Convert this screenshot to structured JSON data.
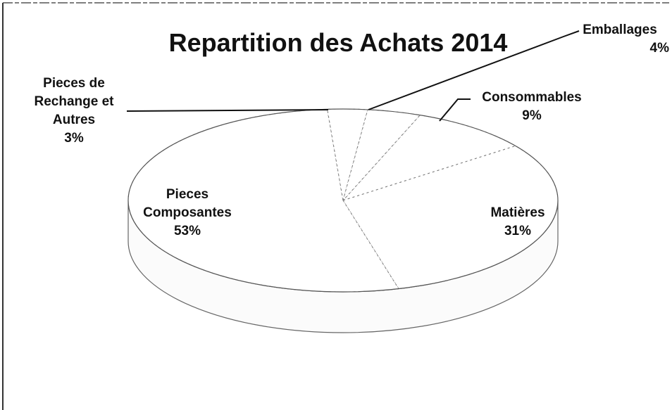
{
  "chart_data": {
    "type": "pie",
    "title": "Repartition des Achats 2014",
    "categories": [
      "Consommables",
      "Matières",
      "Pieces Composantes",
      "Pieces de Rechange et Autres",
      "Emballages"
    ],
    "values": [
      9,
      31,
      53,
      3,
      4
    ],
    "value_labels": [
      "9%",
      "31%",
      "53%",
      "3%",
      "4%"
    ],
    "color": "#ffffff"
  }
}
